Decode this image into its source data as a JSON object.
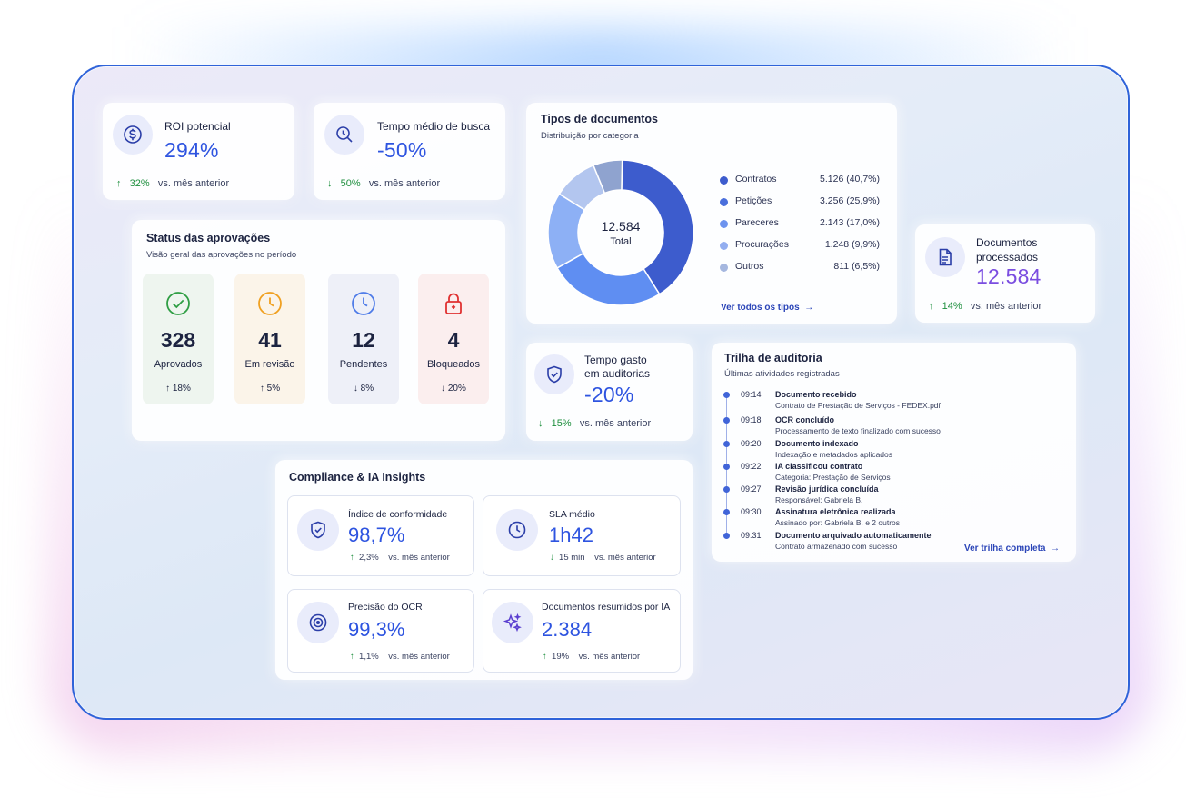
{
  "kpi": {
    "roi": {
      "label": "ROI potencial",
      "value": "294%",
      "trend_arrow": "↑",
      "trend_value": "32%",
      "trend_text": "vs. mês anterior"
    },
    "search_time": {
      "label": "Tempo médio de busca",
      "value": "-50%",
      "trend_arrow": "↓",
      "trend_value": "50%",
      "trend_text": "vs. mês anterior"
    },
    "docs_processed": {
      "label_line1": "Documentos",
      "label_line2": "processados",
      "value": "12.584",
      "trend_arrow": "↑",
      "trend_value": "14%",
      "trend_text": "vs. mês anterior"
    },
    "audit_time": {
      "label_line1": "Tempo gasto",
      "label_line2": "em auditorias",
      "value": "-20%",
      "trend_arrow": "↓",
      "trend_value": "15%",
      "trend_text": "vs. mês anterior"
    }
  },
  "approvals": {
    "title": "Status das aprovações",
    "subtitle": "Visão geral das aprovações no período",
    "items": [
      {
        "value": "328",
        "label": "Aprovados",
        "trend": "↑  18%",
        "icon": "check-circle-icon",
        "color": "#2f9e44",
        "bg": "#eef5ef"
      },
      {
        "value": "41",
        "label": "Em revisão",
        "trend": "↑  5%",
        "icon": "clock-icon",
        "color": "#f0a020",
        "bg": "#fbf4e9"
      },
      {
        "value": "12",
        "label": "Pendentes",
        "trend": "↓  8%",
        "icon": "clock-icon",
        "color": "#4f7ce8",
        "bg": "#eef0f8"
      },
      {
        "value": "4",
        "label": "Bloqueados",
        "trend": "↓  20%",
        "icon": "lock-icon",
        "color": "#e03131",
        "bg": "#fbeeee"
      }
    ]
  },
  "doc_types": {
    "title": "Tipos de documentos",
    "subtitle": "Distribuição por categoria",
    "center_value": "12.584",
    "center_label": "Total",
    "link": "Ver todos os tipos",
    "link_arrow": "→"
  },
  "chart_data": {
    "type": "pie",
    "categories": [
      "Contratos",
      "Petições",
      "Pareceres",
      "Procurações",
      "Outros"
    ],
    "values": [
      5126,
      3256,
      2143,
      1248,
      811
    ],
    "percent": [
      40.7,
      25.9,
      17.0,
      9.9,
      6.5
    ],
    "value_labels": [
      "5.126 (40,7%)",
      "3.256 (25,9%)",
      "2.143 (17,0%)",
      "1.248 (9,9%)",
      "811 (6,5%)"
    ],
    "colors": [
      "#3d5ccd",
      "#5f8ef2",
      "#8db0f5",
      "#b3c6ef",
      "#8fa3cf"
    ],
    "legend_colors": [
      "#3d5ccd",
      "#4a6fdc",
      "#6d93ee",
      "#93aef0",
      "#a5b7df"
    ]
  },
  "audit": {
    "title": "Trilha de auditoria",
    "subtitle": "Últimas atividades registradas",
    "link": "Ver trilha completa",
    "link_arrow": "→",
    "events": [
      {
        "time": "09:14",
        "head": "Documento recebido",
        "desc": "Contrato de Prestação de Serviços - FEDEX.pdf"
      },
      {
        "time": "09:18",
        "head": "OCR concluído",
        "desc": "Processamento de texto finalizado com sucesso"
      },
      {
        "time": "09:20",
        "head": "Documento indexado",
        "desc": "Indexação e metadados aplicados"
      },
      {
        "time": "09:22",
        "head": "IA classificou contrato",
        "desc": "Categoria: Prestação de Serviços"
      },
      {
        "time": "09:27",
        "head": "Revisão jurídica concluída",
        "desc": "Responsável: Gabriela B."
      },
      {
        "time": "09:30",
        "head": "Assinatura eletrônica realizada",
        "desc": "Assinado por: Gabriela B. e 2 outros"
      },
      {
        "time": "09:31",
        "head": "Documento arquivado automaticamente",
        "desc": "Contrato armazenado com sucesso"
      }
    ]
  },
  "compliance": {
    "title": "Compliance & IA Insights",
    "cards": [
      {
        "label": "Índice de conformidade",
        "value": "98,7%",
        "trend_arrow": "↑",
        "trend_value": "2,3%",
        "trend_text": "vs. mês anterior",
        "icon": "shield-check-icon"
      },
      {
        "label": "SLA médio",
        "value": "1h42",
        "trend_arrow": "↓",
        "trend_value": "15 min",
        "trend_text": "vs. mês anterior",
        "icon": "clock-icon"
      },
      {
        "label": "Precisão do OCR",
        "value": "99,3%",
        "trend_arrow": "↑",
        "trend_value": "1,1%",
        "trend_text": "vs. mês anterior",
        "icon": "target-icon"
      },
      {
        "label": "Documentos resumidos por IA",
        "value": "2.384",
        "trend_arrow": "↑",
        "trend_value": "19%",
        "trend_text": "vs. mês anterior",
        "icon": "sparkle-icon"
      }
    ]
  },
  "colors": {
    "accent": "#2e54e0",
    "purple_accent": "#7a4de0",
    "positive": "#1e8f3e",
    "frame_border": "#2f63d9"
  }
}
